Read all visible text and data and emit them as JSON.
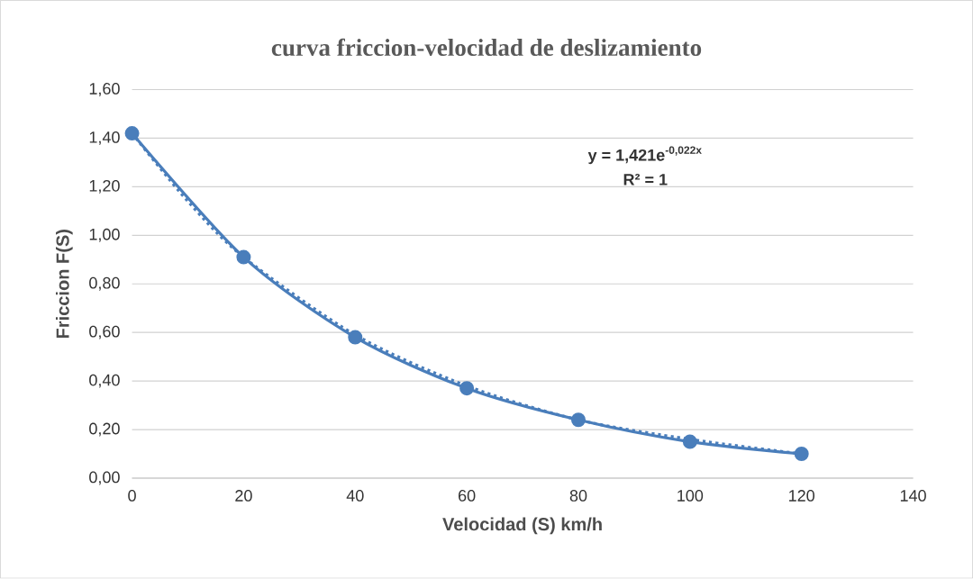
{
  "chart_data": {
    "type": "line",
    "title": "curva friccion-velocidad de deslizamiento",
    "xlabel": "Velocidad (S) km/h",
    "ylabel": "Friccion F(S)",
    "annotations": [
      "y = 1,421e$^{-0,022x}$",
      "R² = 1"
    ],
    "series": [
      {
        "color": "#4a7ebb",
        "x": [
          0,
          20,
          40,
          60,
          80,
          100,
          120
        ],
        "values": [
          1.42,
          0.91,
          0.58,
          0.37,
          0.24,
          0.15,
          0.1
        ],
        "marker": "circle",
        "line_style": "solid"
      },
      {
        "color": "#4a7ebb",
        "x": [
          0,
          10,
          20,
          40,
          60,
          80,
          100,
          120
        ],
        "values": [
          1.42,
          1.14,
          0.91,
          0.59,
          0.38,
          0.24,
          0.16,
          0.1
        ],
        "marker": "none",
        "line_style": "dotted"
      }
    ],
    "xlim": [
      0,
      140
    ],
    "xticks": [
      0,
      20,
      40,
      60,
      80,
      100,
      120,
      140
    ],
    "ylim": [
      0,
      1.6
    ],
    "yticks": [
      {
        "value": 0,
        "label": "0,00"
      },
      {
        "value": 0.2,
        "label": "0,20"
      },
      {
        "value": 0.4,
        "label": "0,40"
      },
      {
        "value": 0.6,
        "label": "0,60"
      },
      {
        "value": 0.8,
        "label": "0,80"
      },
      {
        "value": 1.0,
        "label": "1,00"
      },
      {
        "value": 1.2,
        "label": "1,20"
      },
      {
        "value": 1.4,
        "label": "1,40"
      },
      {
        "value": 1.6,
        "label": "1,60"
      }
    ],
    "grid": "y"
  }
}
